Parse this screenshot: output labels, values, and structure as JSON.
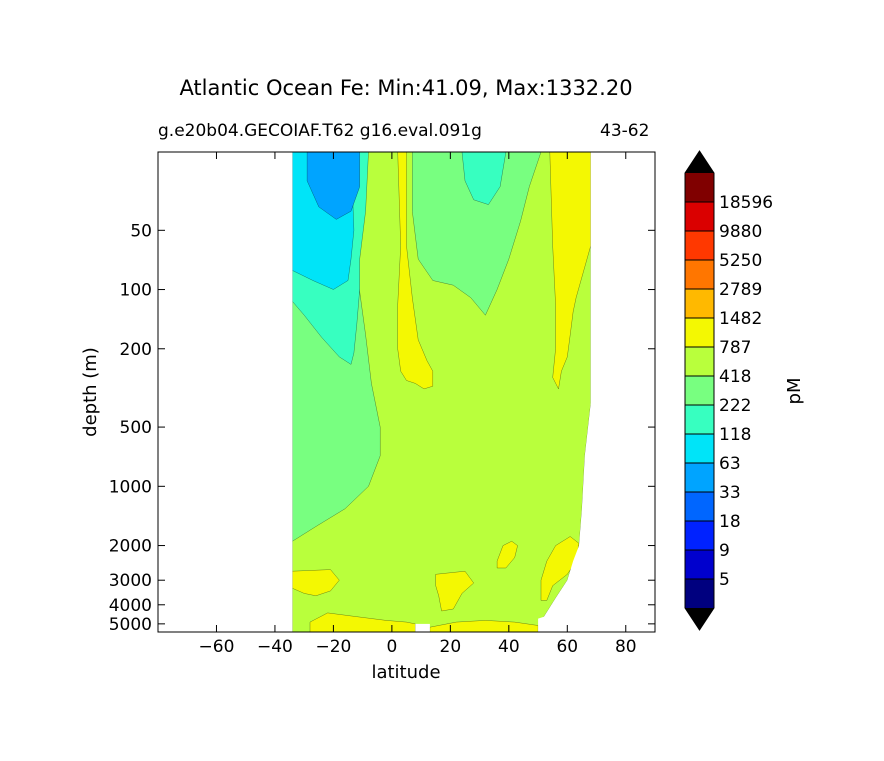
{
  "chart_data": {
    "type": "heatmap",
    "title": "Atlantic Ocean Fe: Min:41.09, Max:1332.20",
    "subtitle_left": "g.e20b04.GECOIAF.T62 g16.eval.091g",
    "subtitle_right": "43-62",
    "xlabel": "latitude",
    "ylabel": "depth (m)",
    "xlim": [
      -80,
      90
    ],
    "xticks": [
      -60,
      -40,
      -20,
      0,
      20,
      40,
      60,
      80
    ],
    "xtick_labels": [
      "−60",
      "−40",
      "−20",
      "0",
      "20",
      "40",
      "60",
      "80"
    ],
    "yscale": "log",
    "ylim": [
      5500,
      20
    ],
    "yticks": [
      50,
      100,
      200,
      500,
      1000,
      2000,
      3000,
      4000,
      5000
    ],
    "ytick_labels": [
      "50",
      "100",
      "200",
      "500",
      "1000",
      "2000",
      "3000",
      "4000",
      "5000"
    ],
    "data_lat_range": [
      -34,
      68
    ],
    "colorbar": {
      "label": "pM",
      "levels": [
        5,
        9,
        18,
        33,
        63,
        118,
        222,
        418,
        787,
        1482,
        2789,
        5250,
        9880,
        18596
      ],
      "tick_labels": [
        "5",
        "9",
        "18",
        "33",
        "63",
        "118",
        "222",
        "418",
        "787",
        "1482",
        "2789",
        "5250",
        "9880",
        "18596"
      ],
      "colors": [
        "#00007f",
        "#0000cd",
        "#0022ff",
        "#0066ff",
        "#00a4ff",
        "#00e4f8",
        "#37ffc0",
        "#78ff80",
        "#b9ff3c",
        "#f4f802",
        "#ffb900",
        "#ff7600",
        "#ff3800",
        "#da0000",
        "#800000"
      ],
      "extend": "both",
      "extend_color": "#000000"
    },
    "regions": [
      {
        "name": "background",
        "level_range": "418-787",
        "color": "#b9ff3c"
      },
      {
        "name": "southern-shallow",
        "level_range": "222-418",
        "color": "#78ff80"
      },
      {
        "name": "southern-upper",
        "level_range": "118-222",
        "color": "#37ffc0"
      },
      {
        "name": "southern-core",
        "level_range": "63-118",
        "color": "#00e4f8"
      },
      {
        "name": "southern-minimum",
        "level_range": "33-63",
        "color": "#00a4ff"
      },
      {
        "name": "north-shallow",
        "level_range": "222-418",
        "color": "#78ff80"
      },
      {
        "name": "north-surface",
        "level_range": "118-222",
        "color": "#37ffc0"
      },
      {
        "name": "equatorial-high",
        "level_range": "787-1482",
        "color": "#f4f802"
      },
      {
        "name": "deep-highs",
        "level_range": "787-1482",
        "color": "#f4f802"
      }
    ]
  }
}
